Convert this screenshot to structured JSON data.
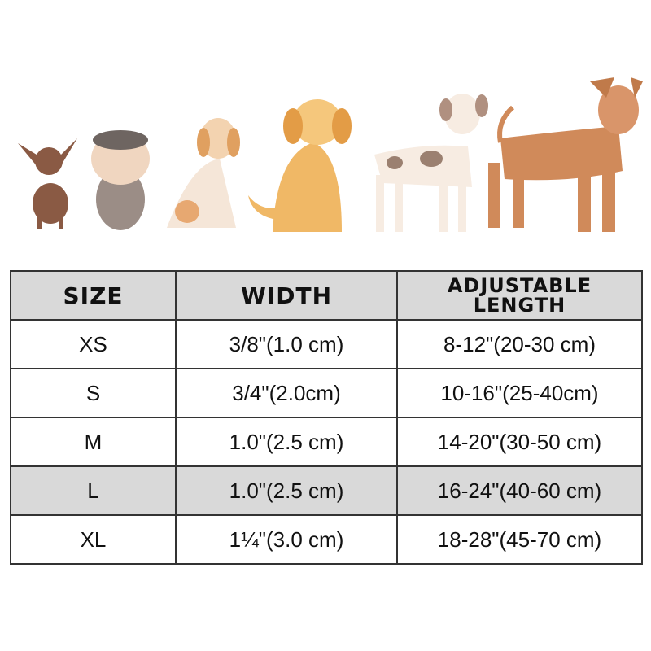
{
  "illustration": {
    "description_icons": [
      "chihuahua",
      "schnauzer",
      "beagle",
      "golden-retriever",
      "great-dane",
      "airedale"
    ]
  },
  "table": {
    "headers": [
      "SIZE",
      "WIDTH",
      "ADJUSTABLE",
      "LENGTH"
    ],
    "rows": [
      {
        "size": "XS",
        "width": "3/8\"(1.0 cm)",
        "length": "8-12\"(20-30 cm)"
      },
      {
        "size": "S",
        "width": "3/4\"(2.0cm)",
        "length": "10-16\"(25-40cm)"
      },
      {
        "size": "M",
        "width": "1.0\"(2.5 cm)",
        "length": "14-20\"(30-50 cm)"
      },
      {
        "size": "L",
        "width": "1.0\"(2.5 cm)",
        "length": "16-24\"(40-60 cm)"
      },
      {
        "size": "XL",
        "width": "1¼\"(3.0 cm)",
        "length": "18-28\"(45-70 cm)"
      }
    ],
    "colors": {
      "header_bg": "#d9d9d9",
      "border": "#333333",
      "highlight_row": "#d9d9d9"
    }
  }
}
